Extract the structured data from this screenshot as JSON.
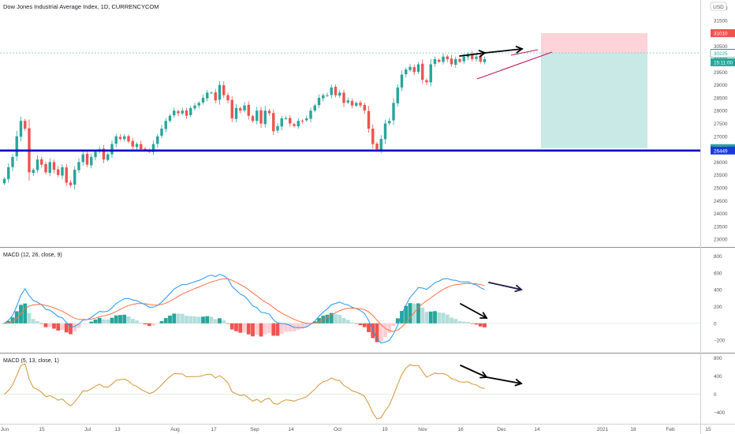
{
  "window": {
    "title": "Dow Jones Industrial Average Index, 1D, CURRENCYCOM",
    "currency": "USD"
  },
  "colors": {
    "up": "#26a69a",
    "down": "#ef5350",
    "support_line": "#0000cc",
    "macd_line": "#2196f3",
    "signal_line": "#ff7043",
    "hist_up_strong": "#26a69a",
    "hist_up_weak": "#b2dfdb",
    "hist_down_strong": "#ef5350",
    "hist_down_weak": "#ffcdd2",
    "osc_line": "#d4953a",
    "wedge_line": "#c2185b",
    "target_zone": "#b2dfdb",
    "stop_zone": "#ffcdd2"
  },
  "chart_data": [
    {
      "type": "candlestick",
      "title": "Dow Jones Industrial Average Index, 1D, CURRENCYCOM",
      "x_tick_labels": [
        "Jun",
        "15",
        "Jul",
        "13",
        "Aug",
        "17",
        "Sep",
        "14",
        "Oct",
        "19",
        "Nov",
        "16",
        "Dec",
        "14",
        "2021",
        "18",
        "Feb",
        "15"
      ],
      "ylim": [
        22700,
        32300
      ],
      "y_ticks": [
        23000,
        23500,
        24000,
        24500,
        25000,
        25500,
        26000,
        26500,
        27000,
        27500,
        28000,
        28500,
        29000,
        29500,
        30000,
        30500,
        31000,
        31500,
        32000
      ],
      "y_tick_labels": [
        "23000",
        "23500",
        "24000",
        "24500",
        "25000",
        "25500",
        "26000",
        "26500",
        "27000",
        "27500",
        "28000",
        "28500",
        "29000",
        "29500",
        "30000",
        "30500",
        "31000",
        "31500",
        "32000"
      ],
      "closes": [
        25350,
        25800,
        26200,
        27000,
        27600,
        27300,
        25600,
        25700,
        26100,
        25900,
        25600,
        26000,
        25700,
        25500,
        25800,
        25200,
        25100,
        25700,
        26000,
        26300,
        25900,
        26200,
        26400,
        26500,
        26100,
        26300,
        26700,
        27000,
        26900,
        27000,
        26800,
        26600,
        26700,
        26500,
        26500,
        26400,
        26700,
        27000,
        27300,
        27600,
        27800,
        28000,
        27900,
        28000,
        27800,
        28100,
        28200,
        28300,
        28500,
        28700,
        28700,
        28400,
        29000,
        28600,
        28400,
        27700,
        28100,
        28000,
        28200,
        27800,
        27600,
        28000,
        27500,
        28000,
        27900,
        27200,
        27400,
        27700,
        27700,
        27500,
        27400,
        27600,
        27600,
        27700,
        28000,
        28200,
        28500,
        28600,
        28600,
        28900,
        28600,
        28700,
        28300,
        28400,
        28200,
        28300,
        28200,
        28000,
        27300,
        26700,
        26500,
        26900,
        27500,
        27600,
        28300,
        28900,
        29400,
        29600,
        29700,
        29500,
        29800,
        29200,
        29100,
        29800,
        30000,
        29900,
        30100,
        30000,
        29800,
        30000,
        29900,
        30100,
        30200,
        30000,
        30100,
        29900,
        30000
      ],
      "series": [
        {
          "name": "MACD (12, 26, close, 9) Histogram",
          "kind": "histogram"
        },
        {
          "name": "MACD (12, 26, close, 9) MACD",
          "kind": "line"
        },
        {
          "name": "MACD (12, 26, close, 9) Signal",
          "kind": "line"
        },
        {
          "name": "MACD (5, 13, close, 1)",
          "kind": "line"
        }
      ],
      "price_labels": [
        {
          "value": 31010,
          "text": "31010",
          "color": "#ef5350"
        },
        {
          "value": 30243,
          "text": "30243",
          "color": "#3c3c3c"
        },
        {
          "value": 30225,
          "text": "30225",
          "color": "#ffffff"
        },
        {
          "value": 29880,
          "text": "15:11:00",
          "color": "#26a69a"
        },
        {
          "value": 26543,
          "text": "26543",
          "color": "#26a69a"
        },
        {
          "value": 26449,
          "text": "26449",
          "color": "#1a3bd9"
        }
      ],
      "horizontal_level": 26449,
      "trade_box": {
        "entry": 30243,
        "stop": 31010,
        "target": 26543
      }
    },
    {
      "type": "line",
      "title": "MACD (12, 26, close, 9)",
      "ylim": [
        -350,
        900
      ],
      "y_ticks": [
        800,
        600,
        400,
        200,
        0,
        -200
      ],
      "y_tick_labels": [
        "800",
        "600",
        "400",
        "200",
        "0",
        "−200"
      ]
    },
    {
      "type": "line",
      "title": "MACD (5, 13, close, 1)",
      "ylim": [
        -650,
        900
      ],
      "y_ticks": [
        800,
        400,
        0,
        -400
      ],
      "y_tick_labels": [
        "800",
        "400",
        "0",
        "−400"
      ]
    }
  ]
}
